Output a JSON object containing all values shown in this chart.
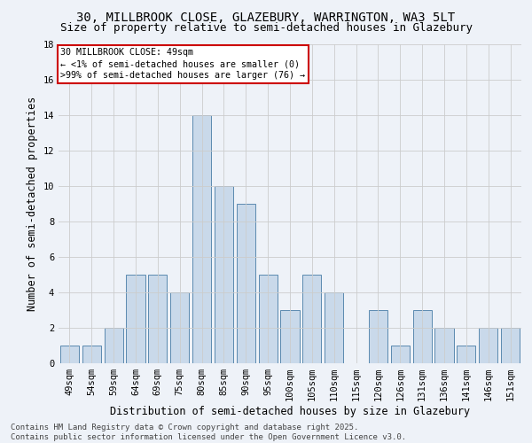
{
  "title1": "30, MILLBROOK CLOSE, GLAZEBURY, WARRINGTON, WA3 5LT",
  "title2": "Size of property relative to semi-detached houses in Glazebury",
  "xlabel": "Distribution of semi-detached houses by size in Glazebury",
  "ylabel": "Number of semi-detached properties",
  "categories": [
    "49sqm",
    "54sqm",
    "59sqm",
    "64sqm",
    "69sqm",
    "75sqm",
    "80sqm",
    "85sqm",
    "90sqm",
    "95sqm",
    "100sqm",
    "105sqm",
    "110sqm",
    "115sqm",
    "120sqm",
    "126sqm",
    "131sqm",
    "136sqm",
    "141sqm",
    "146sqm",
    "151sqm"
  ],
  "values": [
    1,
    1,
    2,
    5,
    5,
    4,
    14,
    10,
    9,
    5,
    3,
    5,
    4,
    0,
    3,
    1,
    3,
    2,
    1,
    2,
    2
  ],
  "bar_color": "#c9d9ea",
  "bar_edge_color": "#5a8ab0",
  "annotation_box_text": "30 MILLBROOK CLOSE: 49sqm\n← <1% of semi-detached houses are smaller (0)\n>99% of semi-detached houses are larger (76) →",
  "annotation_box_color": "#ffffff",
  "annotation_box_edge_color": "#cc0000",
  "ylim": [
    0,
    18
  ],
  "yticks": [
    0,
    2,
    4,
    6,
    8,
    10,
    12,
    14,
    16,
    18
  ],
  "footer": "Contains HM Land Registry data © Crown copyright and database right 2025.\nContains public sector information licensed under the Open Government Licence v3.0.",
  "bg_color": "#eef2f8",
  "grid_color": "#cccccc",
  "title_fontsize": 10,
  "subtitle_fontsize": 9,
  "axis_label_fontsize": 8.5,
  "tick_fontsize": 7.5,
  "footer_fontsize": 6.5
}
